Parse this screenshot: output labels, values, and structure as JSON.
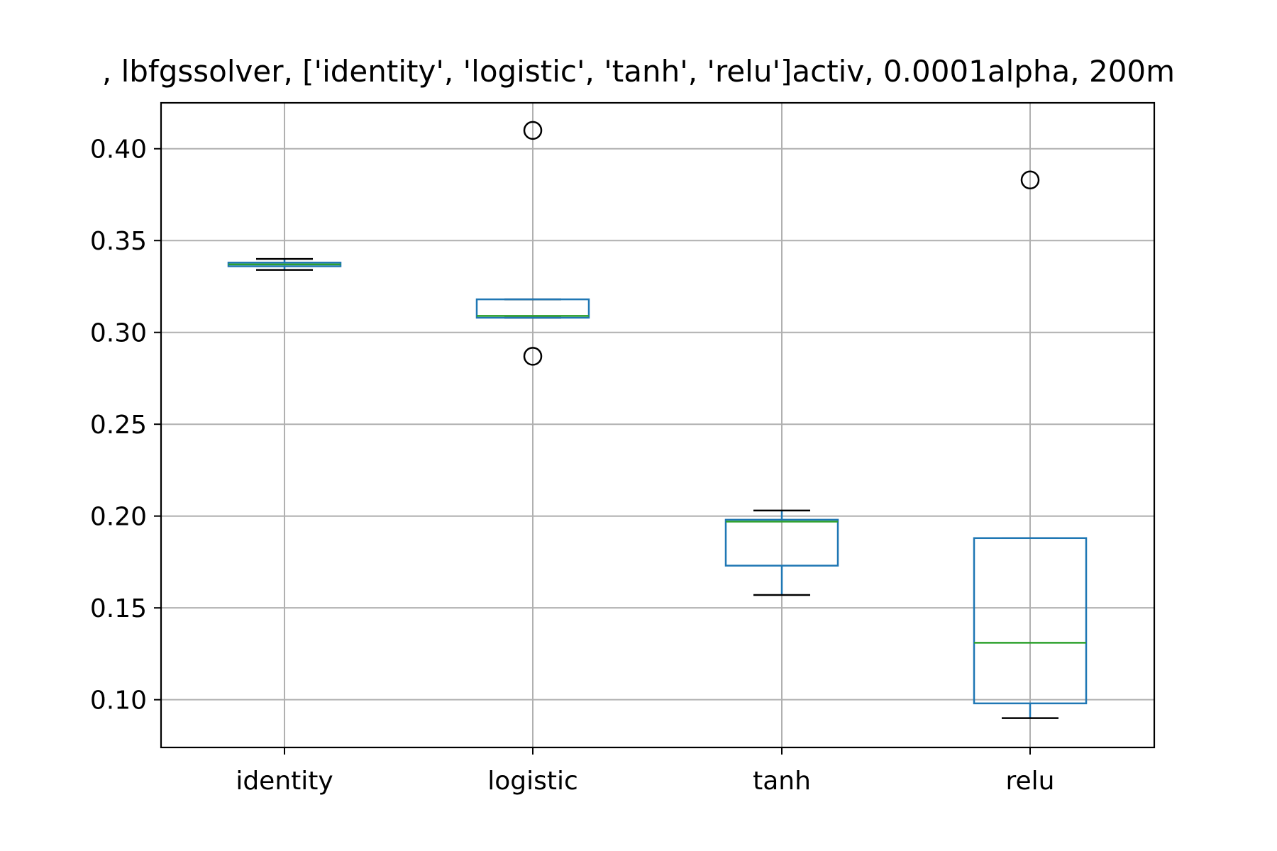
{
  "chart_data": {
    "type": "box",
    "title": ", lbfgssolver, ['identity', 'logistic', 'tanh', 'relu']activ, 0.0001alpha, 200m",
    "xlabel": "",
    "ylabel": "",
    "ylim": [
      0.074,
      0.425
    ],
    "grid": true,
    "categories": [
      "identity",
      "logistic",
      "tanh",
      "relu"
    ],
    "yticks": [
      0.1,
      0.15,
      0.2,
      0.25,
      0.3,
      0.35,
      0.4
    ],
    "ytick_labels": [
      "0.10",
      "0.15",
      "0.20",
      "0.25",
      "0.30",
      "0.35",
      "0.40"
    ],
    "boxes": [
      {
        "name": "identity",
        "whisker_low": 0.334,
        "q1": 0.336,
        "median": 0.337,
        "q3": 0.338,
        "whisker_high": 0.34,
        "outliers": []
      },
      {
        "name": "logistic",
        "whisker_low": 0.308,
        "q1": 0.308,
        "median": 0.309,
        "q3": 0.318,
        "whisker_high": 0.318,
        "outliers": [
          0.41,
          0.287
        ]
      },
      {
        "name": "tanh",
        "whisker_low": 0.157,
        "q1": 0.173,
        "median": 0.197,
        "q3": 0.198,
        "whisker_high": 0.203,
        "outliers": []
      },
      {
        "name": "relu",
        "whisker_low": 0.09,
        "q1": 0.098,
        "median": 0.131,
        "q3": 0.188,
        "whisker_high": 0.188,
        "outliers": [
          0.383
        ]
      }
    ],
    "colors": {
      "box": "#1f77b4",
      "median": "#2ca02c",
      "whisker": "#000000",
      "grid": "#b0b0b0",
      "outlier": "#000000"
    }
  }
}
